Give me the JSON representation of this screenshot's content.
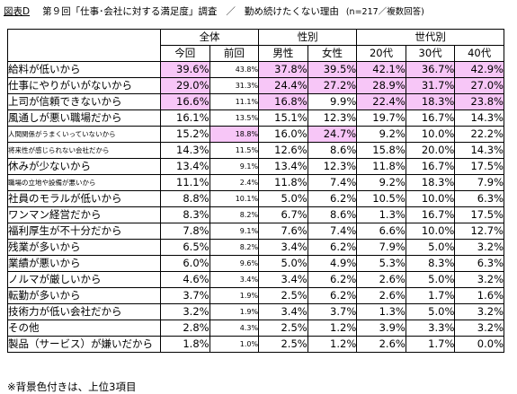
{
  "caption": {
    "figure_tag": "図表D",
    "title": "第９回「仕事･会社に対する満足度」調査",
    "separator": "／",
    "subtitle": "勤め続けたくない理由",
    "meta": "(n=217／複数回答)"
  },
  "header": {
    "groups": [
      "全体",
      "性別",
      "世代別"
    ],
    "columns": [
      "今回",
      "前回",
      "男性",
      "女性",
      "20代",
      "30代",
      "40代"
    ]
  },
  "highlight_color": "#f7c6f7",
  "rows": [
    {
      "label": "給料が低いから",
      "small": false,
      "values": [
        "39.6%",
        "43.8%",
        "37.8%",
        "39.5%",
        "42.1%",
        "36.7%",
        "42.9%"
      ],
      "hl": [
        true,
        false,
        true,
        true,
        true,
        true,
        true
      ]
    },
    {
      "label": "仕事にやりがいがないから",
      "small": false,
      "values": [
        "29.0%",
        "31.3%",
        "24.4%",
        "27.2%",
        "28.9%",
        "31.7%",
        "27.0%"
      ],
      "hl": [
        true,
        false,
        true,
        true,
        true,
        true,
        true
      ]
    },
    {
      "label": "上司が信頼できないから",
      "small": false,
      "values": [
        "16.6%",
        "11.1%",
        "16.8%",
        "9.9%",
        "22.4%",
        "18.3%",
        "23.8%"
      ],
      "hl": [
        true,
        false,
        true,
        false,
        true,
        true,
        true
      ]
    },
    {
      "label": "風通しが悪い職場だから",
      "small": false,
      "values": [
        "16.1%",
        "13.5%",
        "15.1%",
        "12.3%",
        "19.7%",
        "16.7%",
        "14.3%"
      ],
      "hl": [
        false,
        false,
        false,
        false,
        false,
        false,
        false
      ]
    },
    {
      "label": "人間関係がうまくいっていないから",
      "small": true,
      "values": [
        "15.2%",
        "18.8%",
        "16.0%",
        "24.7%",
        "9.2%",
        "10.0%",
        "22.2%"
      ],
      "hl": [
        false,
        true,
        false,
        true,
        false,
        false,
        false
      ]
    },
    {
      "label": "将来性が感じられない会社だから",
      "small": true,
      "values": [
        "14.3%",
        "11.5%",
        "12.6%",
        "8.6%",
        "15.8%",
        "20.0%",
        "14.3%"
      ],
      "hl": [
        false,
        false,
        false,
        false,
        false,
        false,
        false
      ]
    },
    {
      "label": "休みが少ないから",
      "small": false,
      "values": [
        "13.4%",
        "9.1%",
        "13.4%",
        "12.3%",
        "11.8%",
        "16.7%",
        "17.5%"
      ],
      "hl": [
        false,
        false,
        false,
        false,
        false,
        false,
        false
      ]
    },
    {
      "label": "職場の立地や設備が悪いから",
      "small": true,
      "values": [
        "11.1%",
        "2.4%",
        "11.8%",
        "7.4%",
        "9.2%",
        "18.3%",
        "7.9%"
      ],
      "hl": [
        false,
        false,
        false,
        false,
        false,
        false,
        false
      ]
    },
    {
      "label": "社員のモラルが低いから",
      "small": false,
      "values": [
        "8.8%",
        "10.1%",
        "5.0%",
        "6.2%",
        "10.5%",
        "10.0%",
        "6.3%"
      ],
      "hl": [
        false,
        false,
        false,
        false,
        false,
        false,
        false
      ]
    },
    {
      "label": "ワンマン経営だから",
      "small": false,
      "values": [
        "8.3%",
        "8.2%",
        "6.7%",
        "8.6%",
        "1.3%",
        "16.7%",
        "17.5%"
      ],
      "hl": [
        false,
        false,
        false,
        false,
        false,
        false,
        false
      ]
    },
    {
      "label": "福利厚生が不十分だから",
      "small": false,
      "values": [
        "7.8%",
        "9.1%",
        "7.6%",
        "7.4%",
        "6.6%",
        "10.0%",
        "12.7%"
      ],
      "hl": [
        false,
        false,
        false,
        false,
        false,
        false,
        false
      ]
    },
    {
      "label": "残業が多いから",
      "small": false,
      "values": [
        "6.5%",
        "8.2%",
        "3.4%",
        "6.2%",
        "7.9%",
        "5.0%",
        "3.2%"
      ],
      "hl": [
        false,
        false,
        false,
        false,
        false,
        false,
        false
      ]
    },
    {
      "label": "業績が悪いから",
      "small": false,
      "values": [
        "6.0%",
        "9.6%",
        "5.0%",
        "4.9%",
        "5.3%",
        "8.3%",
        "6.3%"
      ],
      "hl": [
        false,
        false,
        false,
        false,
        false,
        false,
        false
      ]
    },
    {
      "label": "ノルマが厳しいから",
      "small": false,
      "values": [
        "4.6%",
        "3.4%",
        "3.4%",
        "6.2%",
        "2.6%",
        "5.0%",
        "3.2%"
      ],
      "hl": [
        false,
        false,
        false,
        false,
        false,
        false,
        false
      ]
    },
    {
      "label": "転勤が多いから",
      "small": false,
      "values": [
        "3.7%",
        "1.9%",
        "2.5%",
        "6.2%",
        "2.6%",
        "1.7%",
        "1.6%"
      ],
      "hl": [
        false,
        false,
        false,
        false,
        false,
        false,
        false
      ]
    },
    {
      "label": "技術力が低い会社だから",
      "small": false,
      "values": [
        "3.2%",
        "1.9%",
        "3.4%",
        "3.7%",
        "1.3%",
        "5.0%",
        "3.2%"
      ],
      "hl": [
        false,
        false,
        false,
        false,
        false,
        false,
        false
      ]
    },
    {
      "label": "その他",
      "small": false,
      "values": [
        "2.8%",
        "4.3%",
        "2.5%",
        "1.2%",
        "3.9%",
        "3.3%",
        "3.2%"
      ],
      "hl": [
        false,
        false,
        false,
        false,
        false,
        false,
        false
      ]
    },
    {
      "label": "製品（サービス）が嫌いだから",
      "small": false,
      "values": [
        "1.8%",
        "1.0%",
        "2.5%",
        "1.2%",
        "2.6%",
        "1.7%",
        "0.0%"
      ],
      "hl": [
        false,
        false,
        false,
        false,
        false,
        false,
        false
      ]
    }
  ],
  "footnote": "※背景色付きは、上位3項目"
}
